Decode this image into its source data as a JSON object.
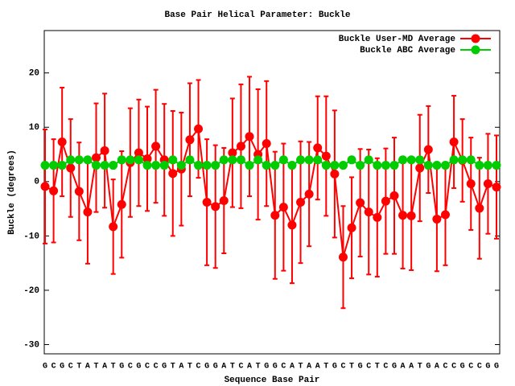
{
  "chart_data": {
    "type": "line",
    "title": "Base Pair Helical Parameter: Buckle",
    "x_label": "Sequence Base Pair",
    "y_label": "Buckle (degrees)",
    "categories": [
      "G",
      "C",
      "G",
      "C",
      "T",
      "A",
      "T",
      "A",
      "T",
      "G",
      "C",
      "G",
      "C",
      "C",
      "G",
      "T",
      "A",
      "T",
      "C",
      "G",
      "G",
      "A",
      "T",
      "C",
      "A",
      "T",
      "G",
      "G",
      "C",
      "A",
      "T",
      "A",
      "A",
      "T",
      "G",
      "C",
      "T",
      "G",
      "C",
      "T",
      "C",
      "G",
      "A",
      "A",
      "T",
      "G",
      "A",
      "C",
      "C",
      "G",
      "C",
      "C",
      "G",
      "G"
    ],
    "series": [
      {
        "name": "Buckle User-MD Average",
        "color": "#ff0000",
        "values": [
          -0.9,
          -1.7,
          7.3,
          2.5,
          -1.8,
          -5.6,
          4.4,
          5.7,
          -8.3,
          -4.2,
          3.5,
          5.3,
          4.2,
          6.5,
          4,
          1.5,
          2.3,
          7.7,
          9.7,
          -3.8,
          -4.6,
          -3.5,
          5.3,
          6.5,
          8.3,
          5,
          7,
          -6.2,
          -4.7,
          -8,
          -3.8,
          -2.3,
          6.2,
          4.7,
          1.4,
          -13.9,
          -8.5,
          -3.9,
          -5.6,
          -6.6,
          -3.6,
          -2.6,
          -6.2,
          -6.3,
          2.5,
          5.9,
          -6.9,
          -6.1,
          7.3,
          3.9,
          -0.4,
          -4.9,
          -0.4,
          -1
        ],
        "errors": [
          10.5,
          9.5,
          10,
          9,
          9,
          9.5,
          10,
          10.5,
          8.7,
          9.8,
          10,
          9.8,
          9.6,
          10.4,
          10.3,
          11.5,
          10.4,
          10.4,
          9,
          11.6,
          11.3,
          9.7,
          10,
          11.4,
          11,
          12,
          11.5,
          11.7,
          11.7,
          10.7,
          11.2,
          9.6,
          9.5,
          11,
          11.7,
          9.4,
          9.3,
          9.9,
          11.5,
          10.9,
          9.7,
          10.7,
          9.8,
          10,
          9.8,
          8,
          9.6,
          9.3,
          8.5,
          7.6,
          8.5,
          9.3,
          9.2,
          9.5
        ]
      },
      {
        "name": "Buckle ABC Average",
        "color": "#00cc00",
        "values": [
          3,
          3,
          3,
          4,
          4,
          4,
          3,
          3,
          3,
          4,
          4,
          4,
          3,
          3,
          3,
          4,
          3,
          4,
          3,
          3,
          3,
          4,
          4,
          4,
          3,
          4,
          3,
          3,
          4,
          3,
          4,
          4,
          4,
          3,
          3,
          3,
          4,
          3,
          4,
          3,
          3,
          3,
          4,
          4,
          4,
          3,
          3,
          3,
          4,
          4,
          4,
          3,
          3,
          3
        ]
      }
    ],
    "ylim": [
      -31.7,
      27.8
    ],
    "yticks": [
      -30,
      -20,
      -10,
      0,
      10,
      20
    ],
    "legend": "upper right"
  }
}
